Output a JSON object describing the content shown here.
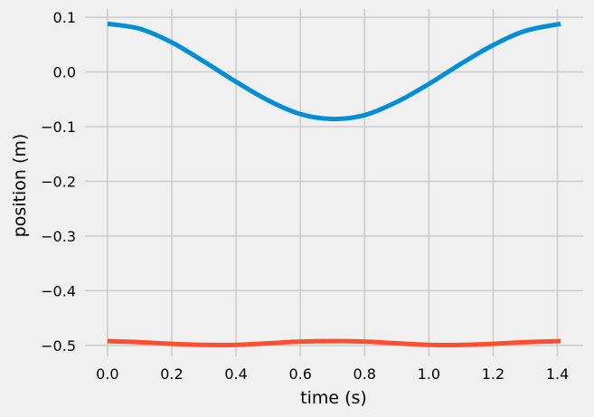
{
  "chart_data": {
    "type": "line",
    "title": "",
    "xlabel": "time (s)",
    "ylabel": "position (m)",
    "xlim": [
      -0.07,
      1.48
    ],
    "ylim": [
      -0.52,
      0.115
    ],
    "grid": true,
    "x_ticks": [
      0.0,
      0.2,
      0.4,
      0.6,
      0.8,
      1.0,
      1.2,
      1.4
    ],
    "x_tick_labels": [
      "0.0",
      "0.2",
      "0.4",
      "0.6",
      "0.8",
      "1.0",
      "1.2",
      "1.4"
    ],
    "y_ticks": [
      0.1,
      0.0,
      -0.1,
      -0.2,
      -0.3,
      -0.4,
      -0.5
    ],
    "y_tick_labels": [
      "0.1",
      "0.0",
      "−0.1",
      "−0.2",
      "−0.3",
      "−0.4",
      "−0.5"
    ],
    "series": [
      {
        "color": "#008fd5",
        "x": [
          0.0,
          0.1,
          0.2,
          0.3,
          0.4,
          0.5,
          0.6,
          0.7,
          0.8,
          0.9,
          1.0,
          1.1,
          1.2,
          1.3,
          1.41
        ],
        "y": [
          0.088,
          0.079,
          0.054,
          0.019,
          -0.018,
          -0.052,
          -0.077,
          -0.086,
          -0.079,
          -0.055,
          -0.022,
          0.015,
          0.049,
          0.075,
          0.088
        ]
      },
      {
        "color": "#fc4f30",
        "x": [
          0.0,
          0.1,
          0.2,
          0.3,
          0.4,
          0.5,
          0.6,
          0.7,
          0.8,
          0.9,
          1.0,
          1.1,
          1.2,
          1.3,
          1.41
        ],
        "y": [
          -0.492,
          -0.494,
          -0.497,
          -0.499,
          -0.499,
          -0.496,
          -0.493,
          -0.492,
          -0.493,
          -0.496,
          -0.499,
          -0.499,
          -0.497,
          -0.494,
          -0.492
        ]
      }
    ]
  }
}
